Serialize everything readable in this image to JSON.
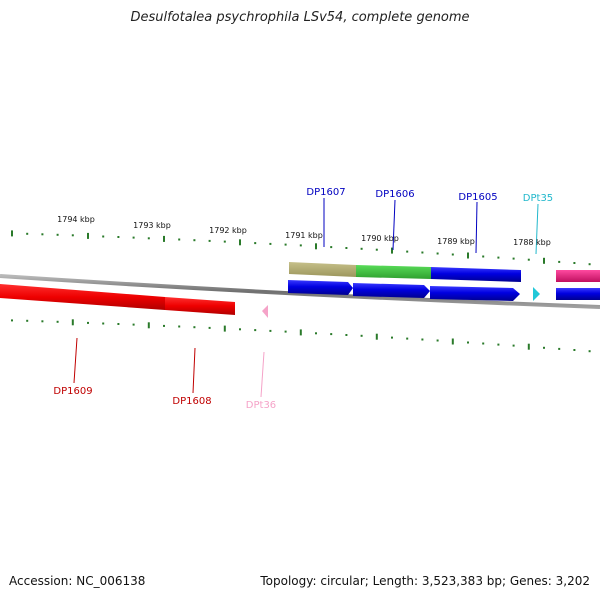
{
  "title": "Desulfotalea psychrophila LSv54, complete genome",
  "footer": {
    "accession": "Accession: NC_006138",
    "summary": "Topology: circular; Length: 3,523,383 bp; Genes: 3,202"
  },
  "scale_labels": [
    "1794 kbp",
    "1793 kbp",
    "1792 kbp",
    "1791 kbp",
    "1790 kbp",
    "1789 kbp",
    "1788 kbp"
  ],
  "gene_labels": {
    "DP1607": "DP1607",
    "DP1606": "DP1606",
    "DP1605": "DP1605",
    "DPt35": "DPt35",
    "DP1609": "DP1609",
    "DP1608": "DP1608",
    "DPt36": "DPt36"
  },
  "colors": {
    "forward_gene": "#0000e6",
    "reverse_gene": "#e60000",
    "trna_forward": "#22c8d8",
    "trna_reverse": "#f5a3c8",
    "tick": "#2a7a2a",
    "backbone": "#8a8a8a",
    "khaki": "#b4ae74",
    "green": "#3ec43e",
    "magenta": "#e8207a"
  }
}
